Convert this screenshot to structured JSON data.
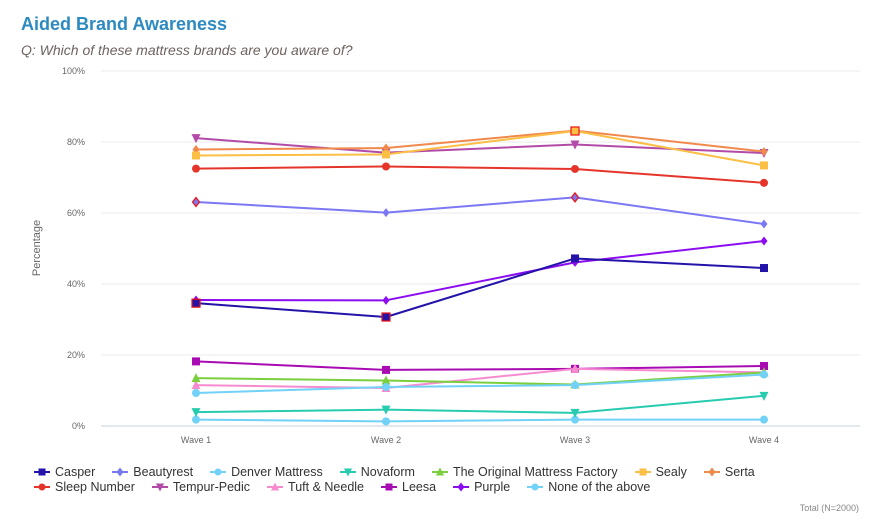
{
  "header": {
    "title": "Aided Brand Awareness",
    "subtitle": "Q: Which of these mattress brands are you aware of?"
  },
  "footnote": "Total (N=2000)",
  "chart_data": {
    "type": "line",
    "title": "Aided Brand Awareness",
    "subtitle": "Q: Which of these mattress brands are you aware of?",
    "xlabel": "",
    "ylabel": "Percentage",
    "x": [
      "Wave 1",
      "Wave 2",
      "Wave 3",
      "Wave 4"
    ],
    "ylim": [
      0,
      100
    ],
    "yticks": [
      0,
      20,
      40,
      60,
      80,
      100
    ],
    "ytick_labels": [
      "0%",
      "20%",
      "40%",
      "60%",
      "80%",
      "100%"
    ],
    "grid": true,
    "legend_position": "bottom",
    "series": [
      {
        "name": "Casper",
        "color": "#2313a8",
        "marker": "square",
        "values": [
          34.6,
          30.7,
          47.2,
          44.5
        ]
      },
      {
        "name": "Beautyrest",
        "color": "#7b78f4",
        "marker": "diamond",
        "values": [
          63.1,
          60.1,
          64.4,
          56.9
        ]
      },
      {
        "name": "Denver Mattress",
        "color": "#72d1f7",
        "marker": "circle",
        "values": [
          9.3,
          11.0,
          11.5,
          14.5
        ]
      },
      {
        "name": "Novaform",
        "color": "#27cbaf",
        "marker": "triangle-down",
        "values": [
          3.9,
          4.6,
          3.7,
          8.5
        ]
      },
      {
        "name": "The Original Mattress Factory",
        "color": "#7bcf3e",
        "marker": "triangle",
        "values": [
          13.5,
          12.8,
          11.7,
          15.1
        ]
      },
      {
        "name": "Sealy",
        "color": "#fbbf45",
        "marker": "square",
        "values": [
          76.2,
          76.5,
          83.1,
          73.4
        ]
      },
      {
        "name": "Serta",
        "color": "#ef8a4c",
        "marker": "diamond",
        "values": [
          77.9,
          78.3,
          83.2,
          77.3
        ]
      },
      {
        "name": "Sleep Number",
        "color": "#e5352b",
        "marker": "circle",
        "values": [
          72.5,
          73.1,
          72.4,
          68.5
        ]
      },
      {
        "name": "Tempur-Pedic",
        "color": "#b24ba8",
        "marker": "triangle-down",
        "values": [
          81.1,
          77.0,
          79.3,
          76.9
        ]
      },
      {
        "name": "Tuft & Needle",
        "color": "#f78bd0",
        "marker": "triangle",
        "values": [
          11.5,
          10.7,
          16.1,
          15.1
        ]
      },
      {
        "name": "Leesa",
        "color": "#a90bb3",
        "marker": "square",
        "values": [
          18.2,
          15.8,
          16.1,
          16.9
        ]
      },
      {
        "name": "Purple",
        "color": "#8c0cf0",
        "marker": "diamond",
        "values": [
          35.5,
          35.4,
          46.1,
          52.1
        ]
      },
      {
        "name": "None of the above",
        "color": "#72d1f7",
        "marker": "circle",
        "values": [
          1.8,
          1.3,
          1.8,
          1.8
        ]
      }
    ],
    "highlighted_points": [
      {
        "series": "Casper",
        "x": "Wave 1"
      },
      {
        "series": "Casper",
        "x": "Wave 2"
      },
      {
        "series": "Beautyrest",
        "x": "Wave 1"
      },
      {
        "series": "Beautyrest",
        "x": "Wave 3"
      },
      {
        "series": "Sealy",
        "x": "Wave 3"
      }
    ],
    "highlight_color": "#ee1111"
  },
  "legend_rows": [
    [
      0,
      1,
      2,
      3,
      4,
      5,
      6
    ],
    [
      7,
      8,
      9,
      10,
      11,
      12
    ]
  ]
}
